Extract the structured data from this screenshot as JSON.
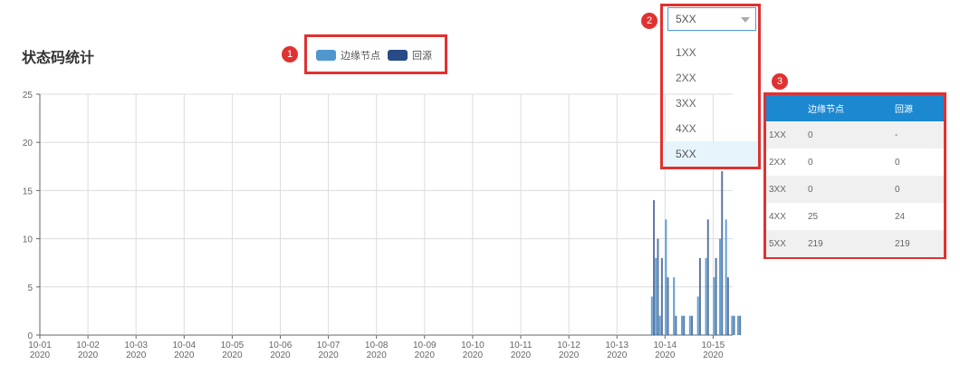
{
  "page": {
    "title": "状态码统计"
  },
  "badges": {
    "legend": "1",
    "dropdown": "2",
    "table": "3"
  },
  "legend": {
    "items": [
      {
        "label": "边缘节点",
        "color": "#4f97cc"
      },
      {
        "label": "回源",
        "color": "#284a86"
      }
    ]
  },
  "dropdown": {
    "selected": "5XX",
    "options": [
      "1XX",
      "2XX",
      "3XX",
      "4XX",
      "5XX"
    ]
  },
  "table": {
    "headers": [
      "",
      "边缘节点",
      "回源"
    ],
    "rows": [
      [
        "1XX",
        "0",
        "-"
      ],
      [
        "2XX",
        "0",
        "0"
      ],
      [
        "3XX",
        "0",
        "0"
      ],
      [
        "4XX",
        "25",
        "24"
      ],
      [
        "5XX",
        "219",
        "219"
      ]
    ]
  },
  "chart_data": {
    "type": "bar",
    "ylim": [
      0,
      25
    ],
    "yticks": [
      0,
      5,
      10,
      15,
      20,
      25
    ],
    "xticks": [
      [
        "10-01",
        "2020"
      ],
      [
        "10-02",
        "2020"
      ],
      [
        "10-03",
        "2020"
      ],
      [
        "10-04",
        "2020"
      ],
      [
        "10-05",
        "2020"
      ],
      [
        "10-06",
        "2020"
      ],
      [
        "10-07",
        "2020"
      ],
      [
        "10-08",
        "2020"
      ],
      [
        "10-09",
        "2020"
      ],
      [
        "10-10",
        "2020"
      ],
      [
        "10-11",
        "2020"
      ],
      [
        "10-12",
        "2020"
      ],
      [
        "10-13",
        "2020"
      ],
      [
        "10-14",
        "2020"
      ],
      [
        "10-15",
        "2020"
      ]
    ],
    "series": [
      {
        "name": "边缘节点",
        "color": "#4f97cc",
        "x": [
          "10-13 17:00",
          "10-13 19:00",
          "10-13 21:00",
          "10-14 00:00",
          "10-14 04:00",
          "10-14 08:00",
          "10-14 12:00",
          "10-14 16:00",
          "10-14 20:00",
          "10-15 00:00",
          "10-15 03:00",
          "10-15 06:00",
          "10-15 09:00",
          "10-15 12:00"
        ],
        "values": [
          4,
          8,
          2,
          12,
          6,
          2,
          2,
          4,
          8,
          6,
          10,
          12,
          2,
          2
        ]
      },
      {
        "name": "回源",
        "color": "#284a86",
        "x": [
          "10-13 18:00",
          "10-13 20:00",
          "10-13 22:00",
          "10-14 01:00",
          "10-14 05:00",
          "10-14 09:00",
          "10-14 13:00",
          "10-14 17:00",
          "10-14 21:00",
          "10-15 01:00",
          "10-15 04:00",
          "10-15 07:00",
          "10-15 10:00",
          "10-15 13:00"
        ],
        "values": [
          14,
          10,
          8,
          6,
          2,
          2,
          2,
          8,
          12,
          8,
          17,
          6,
          2,
          2
        ]
      }
    ]
  }
}
